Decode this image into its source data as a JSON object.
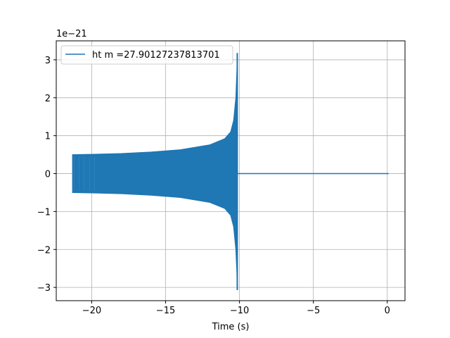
{
  "chart_data": {
    "type": "line",
    "title": "",
    "xlabel": "Time (s)",
    "ylabel": "",
    "y_offset_label": "1e−21",
    "xlim": [
      -22.4,
      1.2
    ],
    "ylim": [
      -3.35,
      3.5
    ],
    "grid": true,
    "legend_placement": "upper-left",
    "xticks": [
      -20,
      -15,
      -10,
      -5,
      0
    ],
    "xtick_labels": [
      "−20",
      "−15",
      "−10",
      "−5",
      "0"
    ],
    "yticks": [
      3,
      2,
      1,
      0,
      -1,
      -2,
      -3
    ],
    "ytick_labels": [
      "3",
      "2",
      "1",
      "0",
      "−1",
      "−2",
      "−3"
    ],
    "series": [
      {
        "name": "ht m =27.90127237813701",
        "color": "#1f77b4",
        "envelope_x": [
          -21.3,
          -20,
          -18,
          -16,
          -14,
          -12,
          -11,
          -10.6,
          -10.4,
          -10.25,
          -10.18,
          -10.15
        ],
        "envelope_upper": [
          0.5,
          0.51,
          0.53,
          0.57,
          0.63,
          0.76,
          0.92,
          1.1,
          1.4,
          2.0,
          2.7,
          3.18
        ],
        "envelope_lower": [
          -0.5,
          -0.51,
          -0.53,
          -0.57,
          -0.63,
          -0.76,
          -0.92,
          -1.1,
          -1.4,
          -2.0,
          -2.6,
          -3.07
        ],
        "tail_x": [
          -10.1,
          0.1
        ],
        "tail_y": [
          0,
          0
        ]
      }
    ]
  }
}
